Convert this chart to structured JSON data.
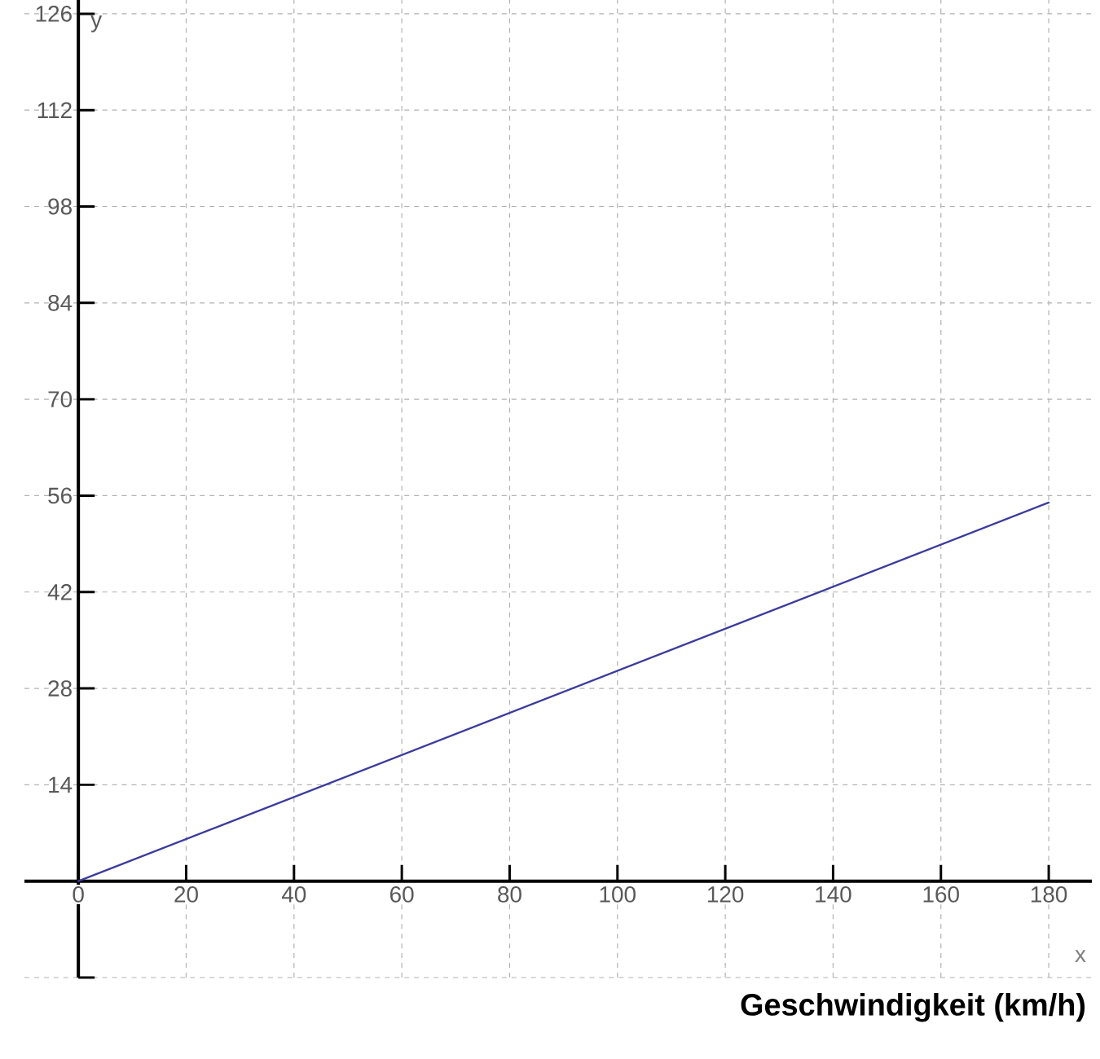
{
  "chart_data": {
    "type": "line",
    "xlabel": "Geschwindigkeit (km/h)",
    "ylabel": "y",
    "annotations": [
      "x"
    ],
    "x": [
      0,
      180
    ],
    "series": [
      {
        "color": "#3c3c9c",
        "values": [
          0,
          55
        ]
      }
    ],
    "xlim": [
      -10,
      188
    ],
    "ylim": [
      -14,
      128
    ],
    "xticks": [
      0,
      20,
      40,
      60,
      80,
      100,
      120,
      140,
      160,
      180
    ],
    "yticks": [
      {
        "value": -14,
        "label": null
      },
      {
        "value": 0,
        "label": null
      },
      14,
      28,
      42,
      56,
      70,
      84,
      98,
      112,
      126
    ],
    "grid": true,
    "marker": "none",
    "line_style": "solid"
  }
}
